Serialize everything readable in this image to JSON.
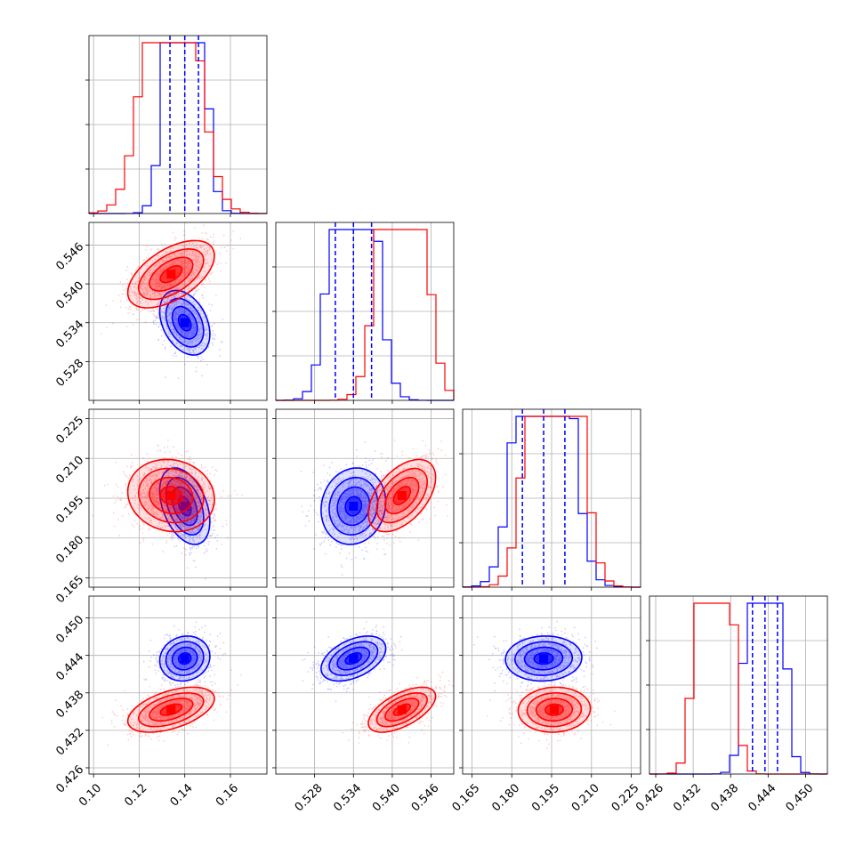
{
  "chart_data": {
    "type": "corner",
    "grid": true,
    "colors": {
      "series_a": "#0000ff",
      "series_b": "#ff0000"
    },
    "parameters": [
      {
        "range": [
          0.098,
          0.176
        ],
        "ticks": [
          0.1,
          0.12,
          0.14,
          0.16
        ],
        "ticklabels": [
          "0.10",
          "0.12",
          "0.14",
          "0.16"
        ]
      },
      {
        "range": [
          0.522,
          0.5495
        ],
        "ticks": [
          0.528,
          0.534,
          0.54,
          0.546
        ],
        "ticklabels": [
          "0.528",
          "0.534",
          "0.540",
          "0.546"
        ]
      },
      {
        "range": [
          0.1615,
          0.2285
        ],
        "ticks": [
          0.165,
          0.18,
          0.195,
          0.21,
          0.225
        ],
        "ticklabels": [
          "0.165",
          "0.180",
          "0.195",
          "0.210",
          "0.225"
        ]
      },
      {
        "range": [
          0.425,
          0.4535
        ],
        "ticks": [
          0.426,
          0.432,
          0.438,
          0.444,
          0.45
        ],
        "ticklabels": [
          "0.426",
          "0.432",
          "0.438",
          "0.444",
          "0.450"
        ]
      }
    ],
    "series": [
      {
        "color": "#0000ff",
        "means": [
          0.14,
          0.534,
          0.192,
          0.4435
        ],
        "sds": [
          0.0055,
          0.0025,
          0.0072,
          0.0018
        ],
        "correlations": [
          [
            1,
            -0.35,
            -0.4,
            0.1
          ],
          [
            -0.35,
            1,
            0.1,
            0.45
          ],
          [
            -0.4,
            0.1,
            1,
            0.05
          ],
          [
            0.1,
            0.45,
            0.05,
            1
          ]
        ],
        "quantiles": [
          [
            0.1335,
            0.14,
            0.146
          ],
          [
            0.5312,
            0.534,
            0.5368
          ],
          [
            0.184,
            0.192,
            0.2
          ],
          [
            0.4415,
            0.4435,
            0.4455
          ]
        ]
      },
      {
        "color": "#ff0000",
        "means": [
          0.134,
          0.5415,
          0.196,
          0.4353
        ],
        "sds": [
          0.0095,
          0.0026,
          0.0068,
          0.0018
        ],
        "correlations": [
          [
            1,
            0.55,
            -0.1,
            0.5
          ],
          [
            0.55,
            1,
            0.5,
            0.6
          ],
          [
            -0.1,
            0.5,
            1,
            0.05
          ],
          [
            0.5,
            0.6,
            0.05,
            1
          ]
        ]
      }
    ],
    "histogram_bins": 20
  }
}
